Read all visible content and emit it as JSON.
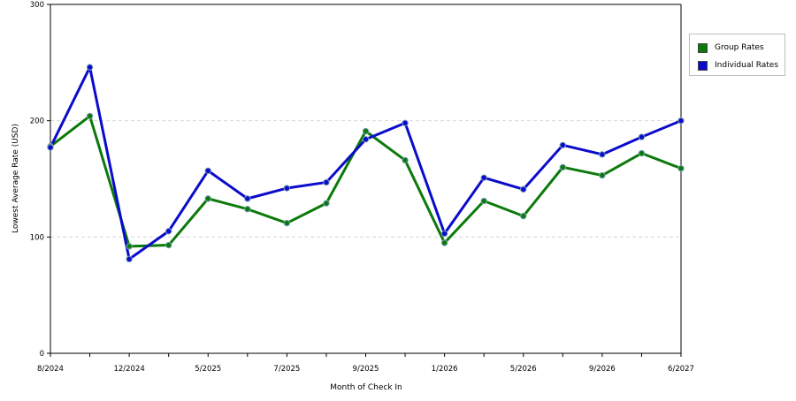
{
  "chart_data": {
    "type": "line",
    "xlabel": "Month of Check In",
    "ylabel": "Lowest Average Rate (USD)",
    "ylim": [
      0,
      300
    ],
    "yticks": [
      0,
      100,
      200,
      300
    ],
    "grid": "horizontal dashed at 100 and 200",
    "legend_position": "top-right, outside plot",
    "x_tick_labels": [
      "8/2024",
      "12/2024",
      "5/2025",
      "7/2025",
      "9/2025",
      "1/2026",
      "5/2026",
      "9/2026",
      "6/2027"
    ],
    "x_tick_positions": [
      0,
      2,
      4,
      6,
      8,
      10,
      12,
      14,
      16
    ],
    "x_count": 17,
    "series": [
      {
        "name": "Group Rates",
        "color": "#0b7a0b",
        "values": [
          178,
          204,
          92,
          93,
          133,
          124,
          112,
          129,
          191,
          166,
          95,
          131,
          118,
          160,
          153,
          172,
          159
        ]
      },
      {
        "name": "Individual Rates",
        "color": "#0b0bcc",
        "values": [
          177,
          246,
          81,
          105,
          157,
          133,
          142,
          147,
          184,
          198,
          103,
          151,
          141,
          179,
          171,
          186,
          200
        ]
      }
    ]
  }
}
